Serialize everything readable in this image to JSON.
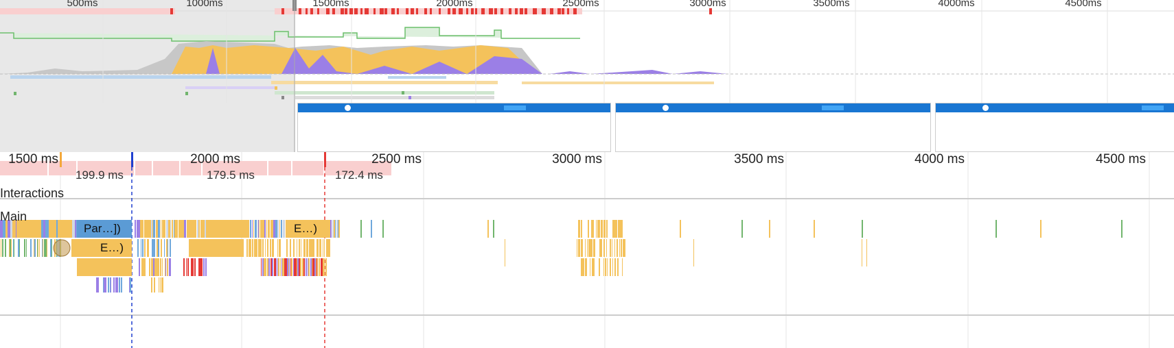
{
  "overview": {
    "time_labels": [
      "500ms",
      "1000ms",
      "1500ms",
      "2000ms",
      "2500ms",
      "3000ms",
      "3500ms",
      "4000ms",
      "4500ms"
    ]
  },
  "ruler": {
    "labels": [
      "1500 ms",
      "2000 ms",
      "2500 ms",
      "3000 ms",
      "3500 ms",
      "4000 ms",
      "4500 ms"
    ]
  },
  "frames": {
    "labels": [
      "199.9 ms",
      "179.5 ms",
      "172.4 ms"
    ]
  },
  "tracks": {
    "interactions": "Interactions",
    "main": "Main"
  },
  "events": {
    "parse": "Par…])",
    "eval_top": "E…)",
    "eval_mid": "E…)"
  },
  "colors": {
    "scripting": "#f4c25b",
    "rendering": "#9b7fe6",
    "loading": "#6fa8dc",
    "painting": "#71b56d",
    "frame": "#f9cfcf",
    "long_task": "#e53935",
    "fps": "#a5d6a7",
    "selection_shade": "#e8e8e8"
  }
}
